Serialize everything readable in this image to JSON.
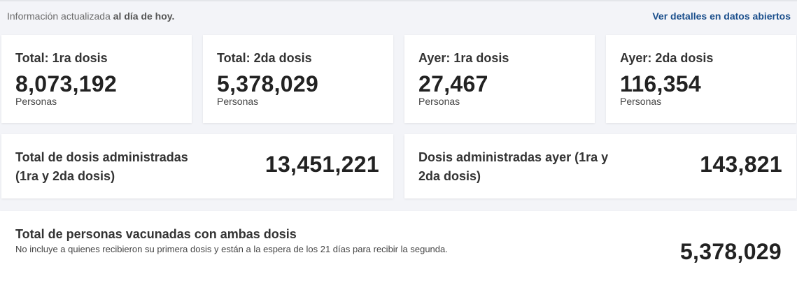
{
  "header": {
    "info_prefix": "Información actualizada",
    "info_bold": "al día de hoy.",
    "link_label": "Ver detalles en datos abiertos"
  },
  "stats": [
    {
      "title": "Total: 1ra dosis",
      "value": "8,073,192",
      "unit": "Personas"
    },
    {
      "title": "Total: 2da dosis",
      "value": "5,378,029",
      "unit": "Personas"
    },
    {
      "title": "Ayer: 1ra dosis",
      "value": "27,467",
      "unit": "Personas"
    },
    {
      "title": "Ayer: 2da dosis",
      "value": "116,354",
      "unit": "Personas"
    }
  ],
  "totals": [
    {
      "title": "Total de dosis administradas (1ra y 2da dosis)",
      "value": "13,451,221"
    },
    {
      "title": "Dosis administradas ayer (1ra y 2da dosis)",
      "value": "143,821"
    }
  ],
  "vaccinated": {
    "title": "Total de personas vacunadas con ambas dosis",
    "description": "No incluye a quienes recibieron su primera dosis y están a la espera de los 21 días para recibir la segunda.",
    "value": "5,378,029"
  }
}
